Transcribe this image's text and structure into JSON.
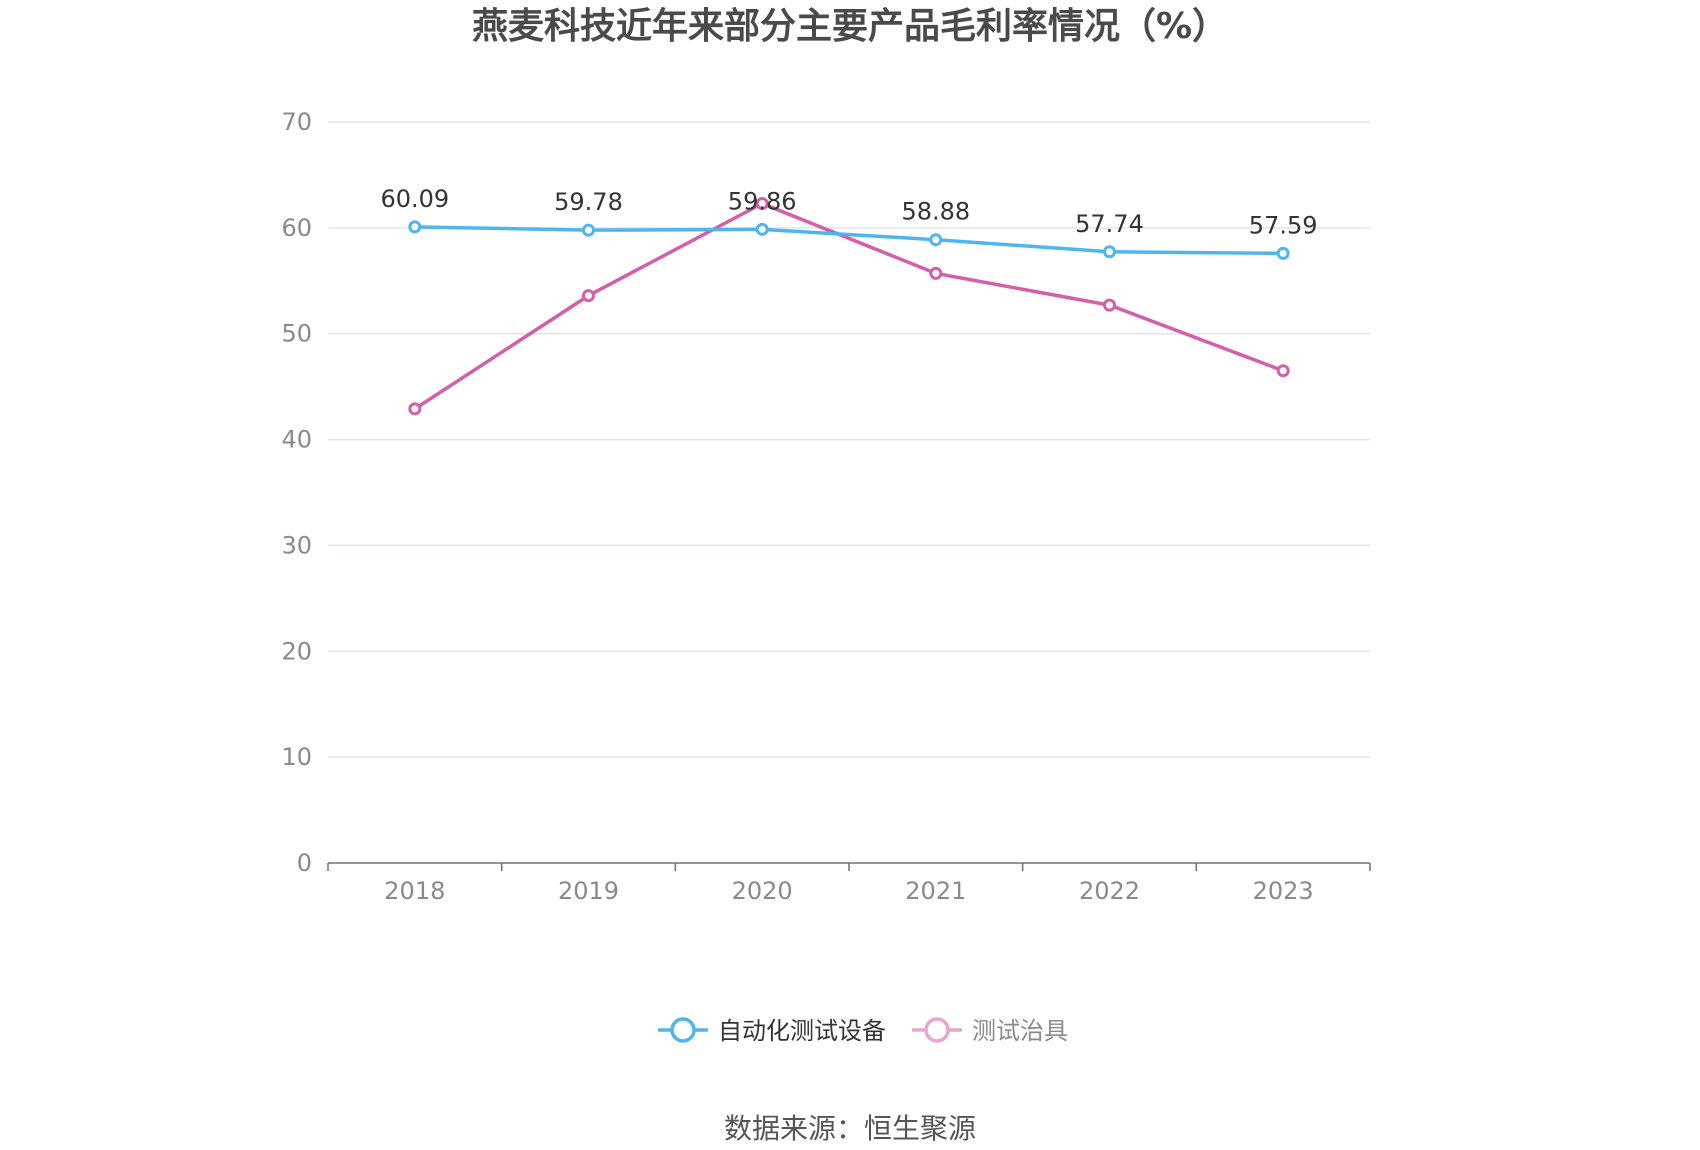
{
  "chart_data": {
    "type": "line",
    "title": "燕麦科技近年来部分主要产品毛利率情况（%）",
    "categories": [
      "2018",
      "2019",
      "2020",
      "2021",
      "2022",
      "2023"
    ],
    "ylim": [
      0,
      70
    ],
    "yticks": [
      0,
      10,
      20,
      30,
      40,
      50,
      60,
      70
    ],
    "grid": true,
    "legend_position": "bottom",
    "series": [
      {
        "name": "自动化测试设备",
        "values": [
          60.09,
          59.78,
          59.86,
          58.88,
          57.74,
          57.59
        ],
        "labels": [
          "60.09",
          "59.78",
          "59.86",
          "58.88",
          "57.74",
          "57.59"
        ],
        "color": "#4db6ee"
      },
      {
        "name": "测试治具",
        "values": [
          42.9,
          53.6,
          62.3,
          55.7,
          52.7,
          46.5
        ],
        "color": "#d45fa8",
        "legend_color": "#e7a6cf"
      }
    ]
  },
  "source": "数据来源：恒生聚源"
}
